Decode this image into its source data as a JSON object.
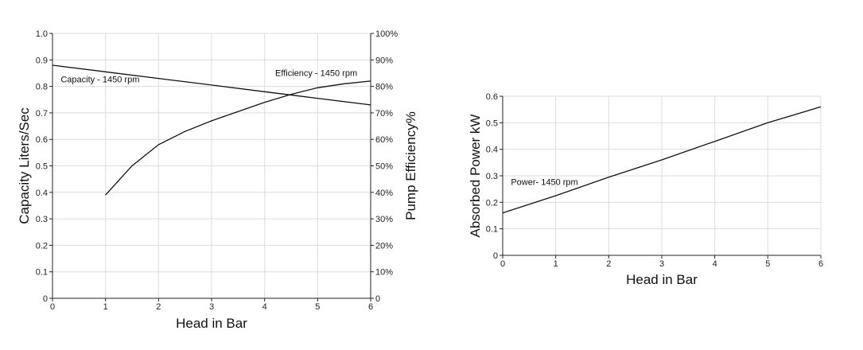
{
  "chart_data": [
    {
      "type": "line",
      "x_label": "Head in Bar",
      "y_label": "Capacity Liters/Sec",
      "y2_label": "Pump Efficiency%",
      "xlim": [
        0,
        6
      ],
      "ylim": [
        0,
        1.0
      ],
      "y2lim": [
        0,
        100
      ],
      "x_ticks": [
        "0",
        "1",
        "2",
        "3",
        "4",
        "5",
        "6"
      ],
      "y_ticks": [
        "0",
        "0.1",
        "0.2",
        "0.3",
        "0.4",
        "0.5",
        "0.6",
        "0.7",
        "0.8",
        "0.9",
        "1.0"
      ],
      "y2_ticks": [
        "0",
        "10%",
        "20%",
        "30%",
        "40%",
        "50%",
        "60%",
        "70%",
        "80%",
        "90%",
        "100%"
      ],
      "grid": true,
      "series": [
        {
          "name": "Capacity - 1450 rpm",
          "axis": "left",
          "x": [
            0,
            1,
            2,
            3,
            4,
            5,
            6
          ],
          "y": [
            0.88,
            0.855,
            0.83,
            0.805,
            0.78,
            0.755,
            0.73
          ]
        },
        {
          "name": "Efficiency - 1450 rpm",
          "axis": "right",
          "x": [
            1,
            1.5,
            2,
            2.5,
            3,
            3.5,
            4,
            4.5,
            5,
            5.5,
            6
          ],
          "y": [
            39,
            50,
            58,
            63,
            67,
            70.5,
            74,
            77,
            79.5,
            81,
            82
          ]
        }
      ]
    },
    {
      "type": "line",
      "x_label": "Head in Bar",
      "y_label": "Absorbed Power kW",
      "xlim": [
        0,
        6
      ],
      "ylim": [
        0,
        0.6
      ],
      "x_ticks": [
        "0",
        "1",
        "2",
        "3",
        "4",
        "5",
        "6"
      ],
      "y_ticks": [
        "0",
        "0.1",
        "0.2",
        "0.3",
        "0.4",
        "0.5",
        "0.6"
      ],
      "grid": true,
      "series": [
        {
          "name": "Power- 1450 rpm",
          "x": [
            0,
            1,
            2,
            3,
            4,
            5,
            6
          ],
          "y": [
            0.16,
            0.225,
            0.295,
            0.36,
            0.43,
            0.5,
            0.56
          ]
        }
      ]
    }
  ]
}
